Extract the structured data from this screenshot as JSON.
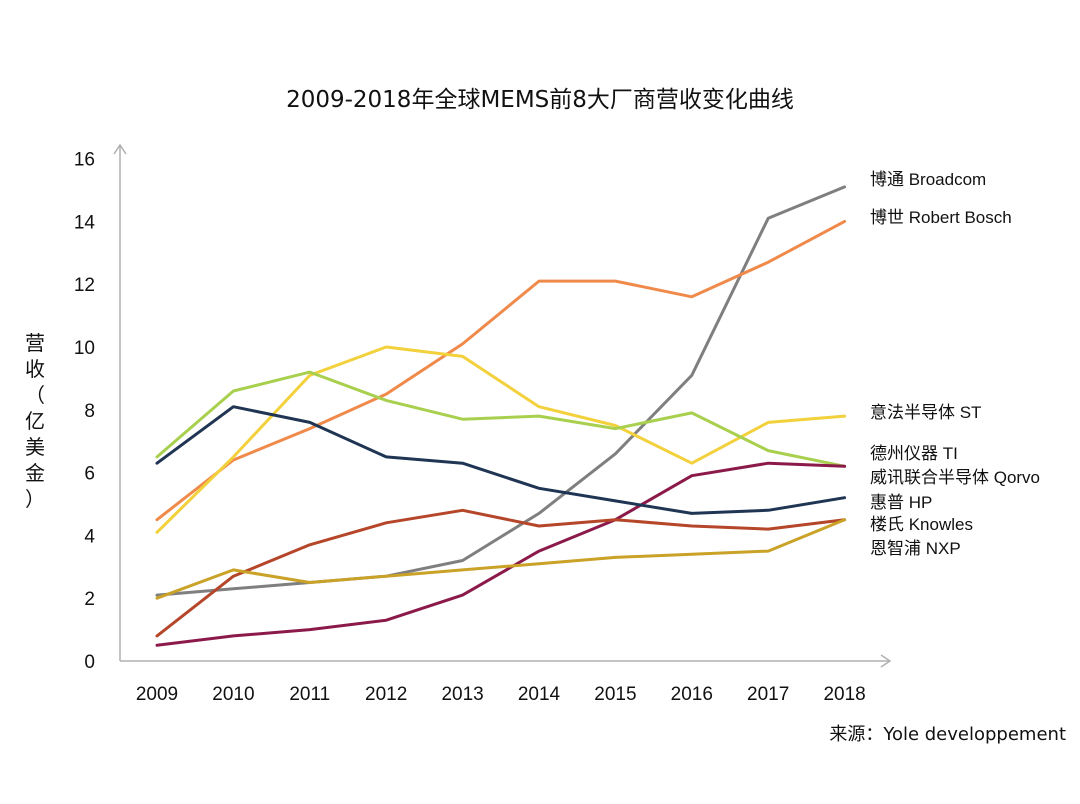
{
  "chart_data": {
    "type": "line",
    "title": "2009-2018年全球MEMS前8大厂商营收变化曲线",
    "ylabel": "营收（亿美金）",
    "ylabel_chars": [
      "营",
      "收",
      "（",
      "亿",
      "美",
      "金",
      "）"
    ],
    "xlabel": "",
    "source": "来源：Yole developpement",
    "x": [
      "2009",
      "2010",
      "2011",
      "2012",
      "2013",
      "2014",
      "2015",
      "2016",
      "2017",
      "2018"
    ],
    "yticks": [
      "0",
      "2",
      "4",
      "6",
      "8",
      "10",
      "12",
      "14",
      "16"
    ],
    "ylim": [
      0,
      16
    ],
    "grid": false,
    "legend_position": "right",
    "series": [
      {
        "name": "博通 Broadcom",
        "color": "#7f7f7f",
        "values": [
          2.1,
          2.3,
          2.5,
          2.7,
          3.2,
          4.7,
          6.6,
          9.1,
          14.1,
          15.1
        ]
      },
      {
        "name": "博世 Robert Bosch",
        "color": "#f08a4b",
        "values": [
          4.5,
          6.4,
          7.4,
          8.5,
          10.1,
          12.1,
          12.1,
          11.6,
          12.7,
          14.0
        ]
      },
      {
        "name": "意法半导体 ST",
        "color": "#f2d13c",
        "values": [
          4.1,
          6.5,
          9.1,
          10.0,
          9.7,
          8.1,
          7.5,
          6.3,
          7.6,
          7.8
        ]
      },
      {
        "name": "德州仪器 TI",
        "color": "#a8d04e",
        "values": [
          6.5,
          8.6,
          9.2,
          8.3,
          7.7,
          7.8,
          7.4,
          7.9,
          6.7,
          6.2
        ]
      },
      {
        "name": "威讯联合半导体 Qorvo",
        "color": "#8b1a4a",
        "values": [
          0.5,
          0.8,
          1.0,
          1.3,
          2.1,
          3.5,
          4.5,
          5.9,
          6.3,
          6.2
        ]
      },
      {
        "name": "惠普 HP",
        "color": "#1f3553",
        "values": [
          6.3,
          8.1,
          7.6,
          6.5,
          6.3,
          5.5,
          5.1,
          4.7,
          4.8,
          5.2
        ]
      },
      {
        "name": "楼氏 Knowles",
        "color": "#b5462a",
        "values": [
          0.8,
          2.7,
          3.7,
          4.4,
          4.8,
          4.3,
          4.5,
          4.3,
          4.2,
          4.5
        ]
      },
      {
        "name": "恩智浦 NXP",
        "color": "#c9a227",
        "values": [
          2.0,
          2.9,
          2.5,
          2.7,
          2.9,
          3.1,
          3.3,
          3.4,
          3.5,
          4.5
        ]
      }
    ]
  }
}
